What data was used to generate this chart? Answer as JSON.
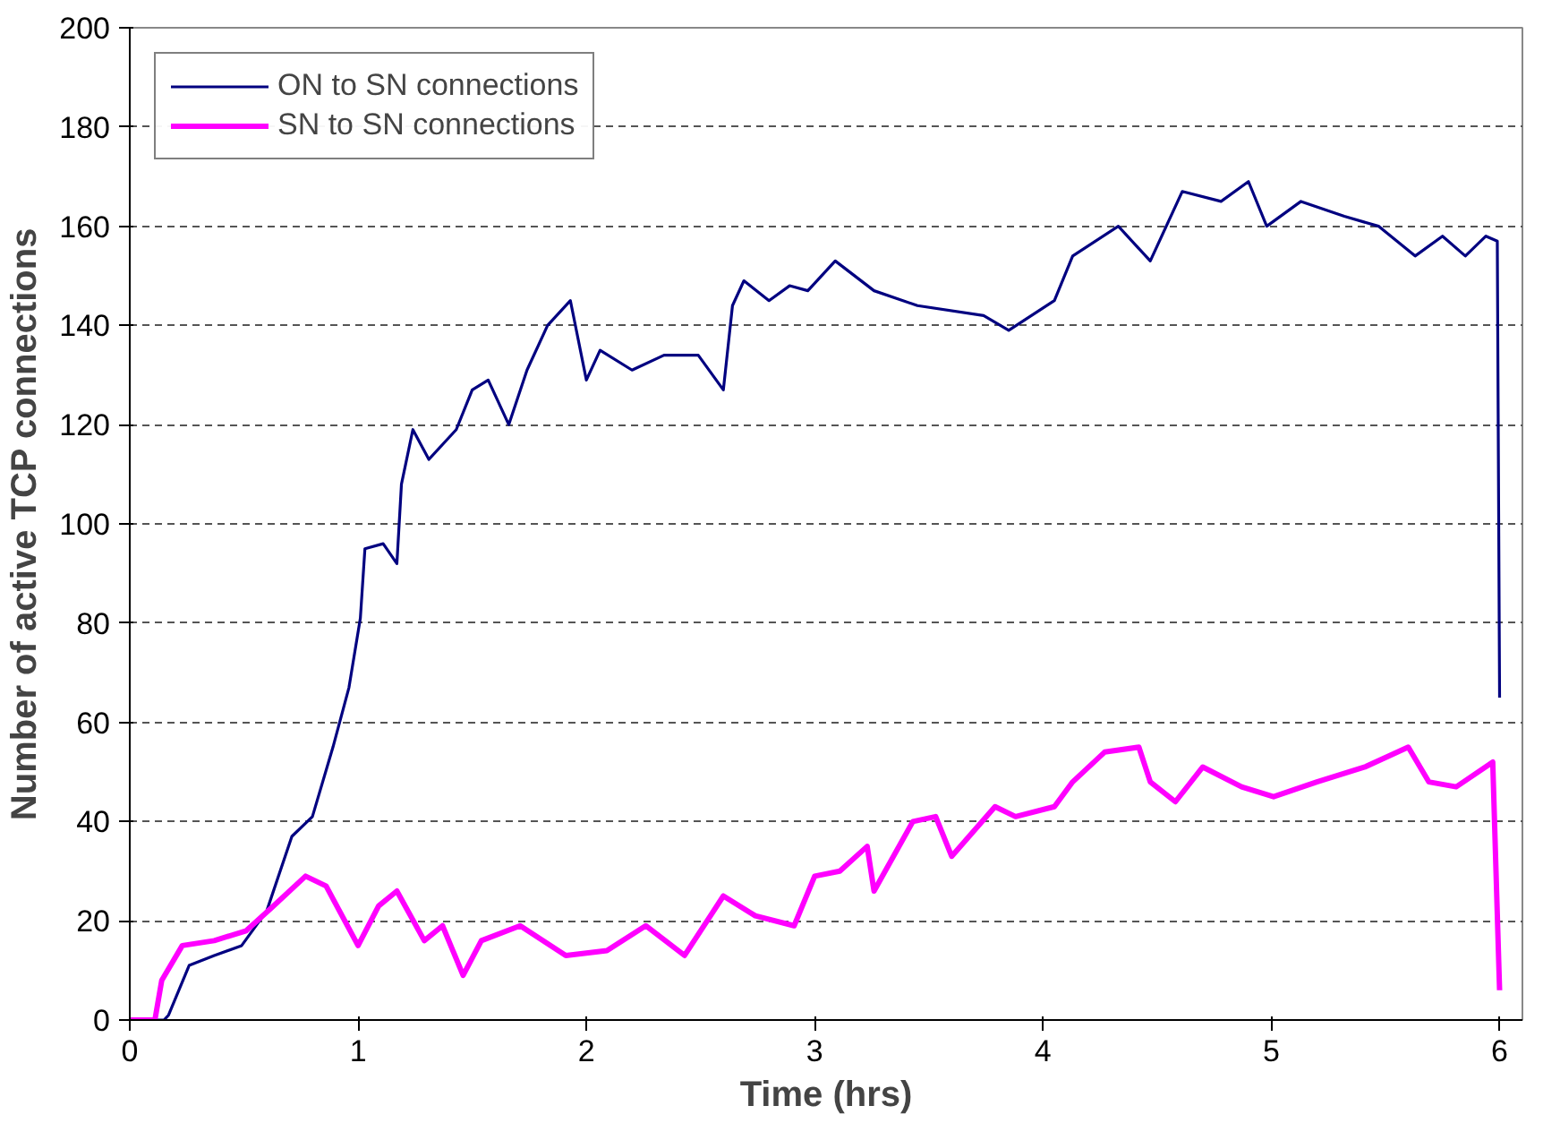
{
  "chart_data": {
    "type": "line",
    "xlabel": "Time (hrs)",
    "ylabel": "Number of active TCP connections",
    "xlim": [
      0,
      6.1
    ],
    "xticks": [
      0,
      1,
      2,
      3,
      4,
      5,
      6
    ],
    "ylim": [
      0,
      200
    ],
    "yticks": [
      0,
      20,
      40,
      60,
      80,
      100,
      120,
      140,
      160,
      180,
      200
    ],
    "grid": "y",
    "legend": "top left",
    "line_style": "solid",
    "marker": "none",
    "series": [
      {
        "name": "ON to SN connections",
        "color": "#000080",
        "x": [
          0,
          0.15,
          0.17,
          0.26,
          0.37,
          0.49,
          0.6,
          0.71,
          0.8,
          0.89,
          0.96,
          1.01,
          1.03,
          1.11,
          1.17,
          1.19,
          1.24,
          1.31,
          1.43,
          1.5,
          1.57,
          1.66,
          1.74,
          1.83,
          1.93,
          2.0,
          2.06,
          2.2,
          2.34,
          2.49,
          2.6,
          2.64,
          2.69,
          2.8,
          2.89,
          2.97,
          3.09,
          3.26,
          3.45,
          3.74,
          3.85,
          4.05,
          4.13,
          4.33,
          4.47,
          4.61,
          4.78,
          4.9,
          4.98,
          5.13,
          5.32,
          5.47,
          5.63,
          5.75,
          5.85,
          5.94,
          5.99,
          6.0
        ],
        "values": [
          0,
          0,
          1,
          11,
          13,
          15,
          22,
          37,
          41,
          55,
          67,
          81,
          95,
          96,
          92,
          108,
          119,
          113,
          119,
          127,
          129,
          120,
          131,
          140,
          145,
          129,
          135,
          131,
          134,
          134,
          127,
          144,
          149,
          145,
          148,
          147,
          153,
          147,
          144,
          142,
          139,
          145,
          154,
          160,
          153,
          167,
          165,
          169,
          160,
          165,
          162,
          160,
          154,
          158,
          154,
          158,
          157,
          65
        ]
      },
      {
        "name": "SN to SN connections",
        "color": "#ff00ff",
        "x": [
          0,
          0.11,
          0.14,
          0.23,
          0.37,
          0.51,
          0.63,
          0.77,
          0.86,
          1.0,
          1.09,
          1.17,
          1.29,
          1.37,
          1.46,
          1.54,
          1.71,
          1.91,
          2.09,
          2.26,
          2.43,
          2.6,
          2.74,
          2.91,
          3.0,
          3.11,
          3.23,
          3.26,
          3.43,
          3.53,
          3.6,
          3.79,
          3.88,
          4.05,
          4.13,
          4.27,
          4.42,
          4.47,
          4.58,
          4.7,
          4.87,
          5.01,
          5.2,
          5.41,
          5.6,
          5.69,
          5.81,
          5.97,
          6.0
        ],
        "values": [
          0,
          0,
          8,
          15,
          16,
          18,
          23,
          29,
          27,
          15,
          23,
          26,
          16,
          19,
          9,
          16,
          19,
          13,
          14,
          19,
          13,
          25,
          21,
          19,
          29,
          30,
          35,
          26,
          40,
          41,
          33,
          43,
          41,
          43,
          48,
          54,
          55,
          48,
          44,
          51,
          47,
          45,
          48,
          51,
          55,
          48,
          47,
          52,
          6
        ]
      }
    ]
  }
}
